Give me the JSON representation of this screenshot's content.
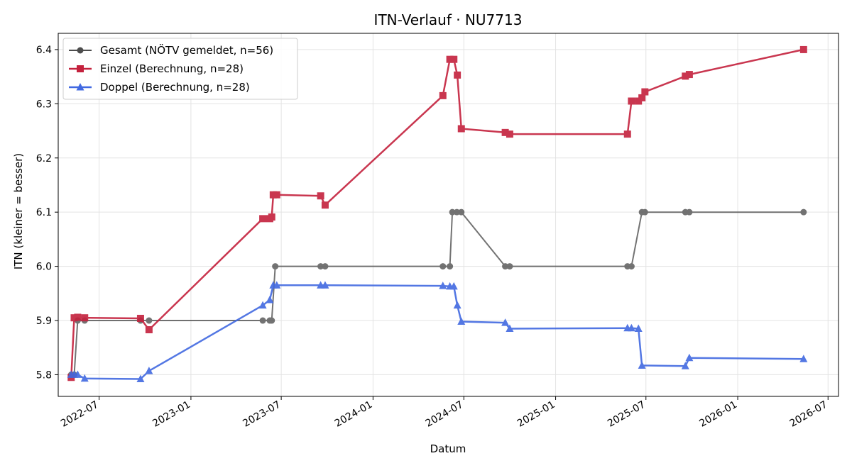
{
  "chart_data": {
    "type": "line",
    "title": "ITN-Verlauf · NU7713",
    "xlabel": "Datum",
    "ylabel": "ITN  (kleiner = besser)",
    "x_type": "date",
    "xlim": [
      "2022-04-10",
      "2026-07-22"
    ],
    "ylim": [
      5.76,
      6.43
    ],
    "x_ticks": [
      "2022-07-01",
      "2023-01-01",
      "2023-07-01",
      "2024-01-01",
      "2024-07-01",
      "2025-01-01",
      "2025-07-01",
      "2026-01-01",
      "2026-07-01"
    ],
    "x_tick_labels": [
      "2022-07",
      "2023-01",
      "2023-07",
      "2024-01",
      "2024-07",
      "2025-01",
      "2025-07",
      "2026-01",
      "2026-07"
    ],
    "y_ticks": [
      5.8,
      5.9,
      6.0,
      6.1,
      6.2,
      6.3,
      6.4
    ],
    "y_tick_labels": [
      "5.8",
      "5.9",
      "6.0",
      "6.1",
      "6.2",
      "6.3",
      "6.4"
    ],
    "grid": true,
    "legend_position": "top-left",
    "series": [
      {
        "name": "Gesamt (NÖTV gemeldet, n=56)",
        "color": "#4d4d4d",
        "marker": "circle",
        "points": [
          [
            "2022-05-06",
            5.8
          ],
          [
            "2022-05-12",
            5.8
          ],
          [
            "2022-05-19",
            5.9
          ],
          [
            "2022-06-02",
            5.9
          ],
          [
            "2022-09-22",
            5.9
          ],
          [
            "2022-10-09",
            5.9
          ],
          [
            "2023-05-25",
            5.9
          ],
          [
            "2023-06-08",
            5.9
          ],
          [
            "2023-06-12",
            5.9
          ],
          [
            "2023-06-19",
            6.0
          ],
          [
            "2023-09-18",
            6.0
          ],
          [
            "2023-09-27",
            6.0
          ],
          [
            "2024-05-20",
            6.0
          ],
          [
            "2024-06-03",
            6.0
          ],
          [
            "2024-06-08",
            6.1
          ],
          [
            "2024-06-17",
            6.1
          ],
          [
            "2024-06-26",
            6.1
          ],
          [
            "2024-09-22",
            6.0
          ],
          [
            "2024-10-01",
            6.0
          ],
          [
            "2025-05-25",
            6.0
          ],
          [
            "2025-06-02",
            6.0
          ],
          [
            "2025-06-23",
            6.1
          ],
          [
            "2025-06-29",
            6.1
          ],
          [
            "2025-09-18",
            6.1
          ],
          [
            "2025-09-26",
            6.1
          ],
          [
            "2026-05-13",
            6.1
          ]
        ]
      },
      {
        "name": "Einzel (Berechnung, n=28)",
        "color": "#c4213d",
        "marker": "square",
        "points": [
          [
            "2022-05-06",
            5.795
          ],
          [
            "2022-05-12",
            5.905
          ],
          [
            "2022-05-19",
            5.906
          ],
          [
            "2022-06-02",
            5.905
          ],
          [
            "2022-09-22",
            5.904
          ],
          [
            "2022-10-09",
            5.883
          ],
          [
            "2023-05-25",
            6.088
          ],
          [
            "2023-06-08",
            6.088
          ],
          [
            "2023-06-12",
            6.091
          ],
          [
            "2023-06-15",
            6.132
          ],
          [
            "2023-06-22",
            6.132
          ],
          [
            "2023-09-18",
            6.13
          ],
          [
            "2023-09-27",
            6.113
          ],
          [
            "2024-05-20",
            6.315
          ],
          [
            "2024-06-03",
            6.382
          ],
          [
            "2024-06-11",
            6.382
          ],
          [
            "2024-06-18",
            6.353
          ],
          [
            "2024-06-26",
            6.254
          ],
          [
            "2024-09-22",
            6.247
          ],
          [
            "2024-10-01",
            6.244
          ],
          [
            "2025-05-25",
            6.244
          ],
          [
            "2025-06-02",
            6.305
          ],
          [
            "2025-06-16",
            6.305
          ],
          [
            "2025-06-23",
            6.311
          ],
          [
            "2025-06-29",
            6.322
          ],
          [
            "2025-09-18",
            6.351
          ],
          [
            "2025-09-26",
            6.354
          ],
          [
            "2026-05-13",
            6.4
          ]
        ]
      },
      {
        "name": "Doppel (Berechnung, n=28)",
        "color": "#4169e1",
        "marker": "triangle",
        "points": [
          [
            "2022-05-06",
            5.8
          ],
          [
            "2022-05-12",
            5.8
          ],
          [
            "2022-05-19",
            5.8
          ],
          [
            "2022-06-02",
            5.793
          ],
          [
            "2022-09-22",
            5.792
          ],
          [
            "2022-10-09",
            5.807
          ],
          [
            "2023-05-25",
            5.928
          ],
          [
            "2023-06-08",
            5.938
          ],
          [
            "2023-06-15",
            5.965
          ],
          [
            "2023-06-22",
            5.965
          ],
          [
            "2023-09-18",
            5.965
          ],
          [
            "2023-09-27",
            5.965
          ],
          [
            "2024-05-20",
            5.964
          ],
          [
            "2024-06-03",
            5.963
          ],
          [
            "2024-06-11",
            5.963
          ],
          [
            "2024-06-18",
            5.928
          ],
          [
            "2024-06-26",
            5.898
          ],
          [
            "2024-09-22",
            5.896
          ],
          [
            "2024-10-01",
            5.885
          ],
          [
            "2025-05-25",
            5.886
          ],
          [
            "2025-06-02",
            5.886
          ],
          [
            "2025-06-16",
            5.885
          ],
          [
            "2025-06-23",
            5.817
          ],
          [
            "2025-09-18",
            5.816
          ],
          [
            "2025-09-26",
            5.831
          ],
          [
            "2026-05-13",
            5.829
          ]
        ]
      }
    ]
  }
}
